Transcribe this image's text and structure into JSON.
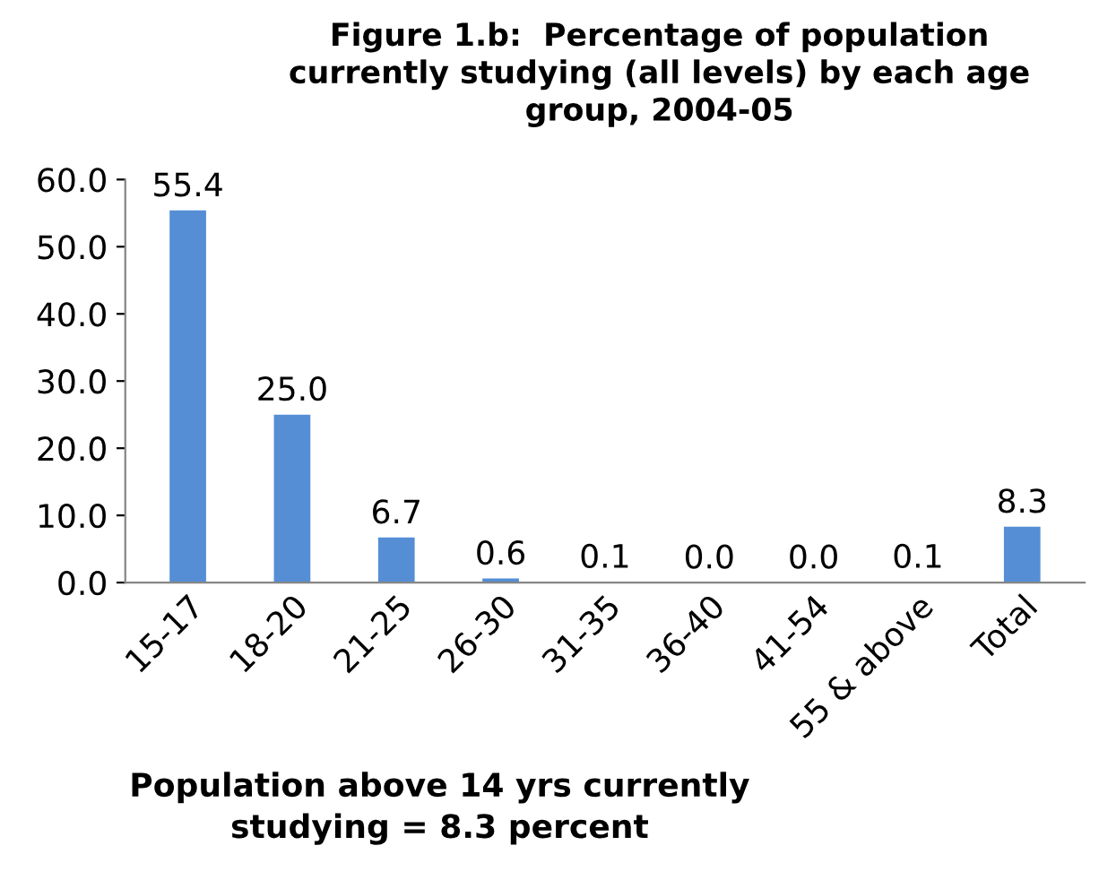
{
  "chart_data": {
    "type": "bar",
    "title": "Figure 1.b:  Percentage of population\ncurrently studying (all levels) by each age\ngroup, 2004-05",
    "categories": [
      "15-17",
      "18-20",
      "21-25",
      "26-30",
      "31-35",
      "36-40",
      "41-54",
      "55 & above",
      "Total"
    ],
    "values": [
      55.4,
      25.0,
      6.7,
      0.6,
      0.1,
      0.0,
      0.0,
      0.1,
      8.3
    ],
    "value_labels": [
      "55.4",
      "25.0",
      "6.7",
      "0.6",
      "0.1",
      "0.0",
      "0.0",
      "0.1",
      "8.3"
    ],
    "color": "#558ed5",
    "ylim": [
      0,
      60
    ],
    "yticks": [
      {
        "value": 0,
        "label": "0.0"
      },
      {
        "value": 10,
        "label": "10.0"
      },
      {
        "value": 20,
        "label": "20.0"
      },
      {
        "value": 30,
        "label": "30.0"
      },
      {
        "value": 40,
        "label": "40.0"
      },
      {
        "value": 50,
        "label": "50.0"
      },
      {
        "value": 60,
        "label": "60.0"
      }
    ],
    "grid": false,
    "legend": false,
    "annotations": [
      "Population above 14 yrs currently\nstudying = 8.3 percent"
    ]
  }
}
